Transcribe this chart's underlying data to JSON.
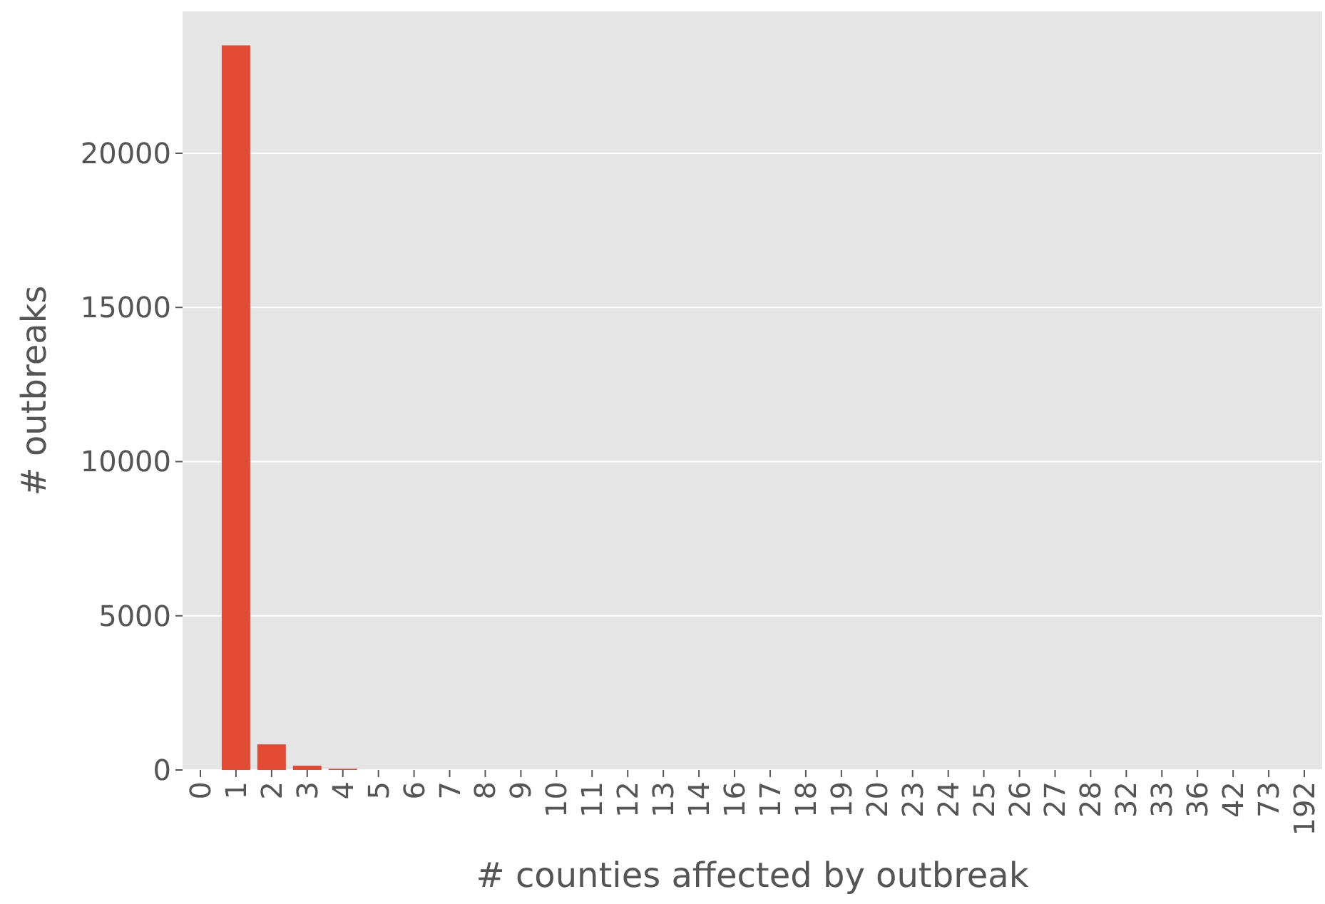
{
  "chart_data": {
    "type": "bar",
    "xlabel": "# counties affected by outbreak",
    "ylabel": "# outbreaks",
    "categories": [
      "0",
      "1",
      "2",
      "3",
      "4",
      "5",
      "6",
      "7",
      "8",
      "9",
      "10",
      "11",
      "12",
      "13",
      "14",
      "16",
      "17",
      "18",
      "19",
      "20",
      "23",
      "24",
      "25",
      "26",
      "27",
      "28",
      "32",
      "33",
      "36",
      "42",
      "73",
      "192"
    ],
    "values": [
      0,
      23500,
      830,
      140,
      40,
      0,
      0,
      0,
      0,
      0,
      0,
      0,
      0,
      0,
      0,
      0,
      0,
      0,
      0,
      0,
      0,
      0,
      0,
      0,
      0,
      0,
      0,
      0,
      0,
      0,
      0,
      0
    ],
    "color": "#e24a33",
    "ylim": [
      0,
      24600
    ],
    "yticks": [
      0,
      5000,
      10000,
      15000,
      20000
    ],
    "grid": "y"
  }
}
